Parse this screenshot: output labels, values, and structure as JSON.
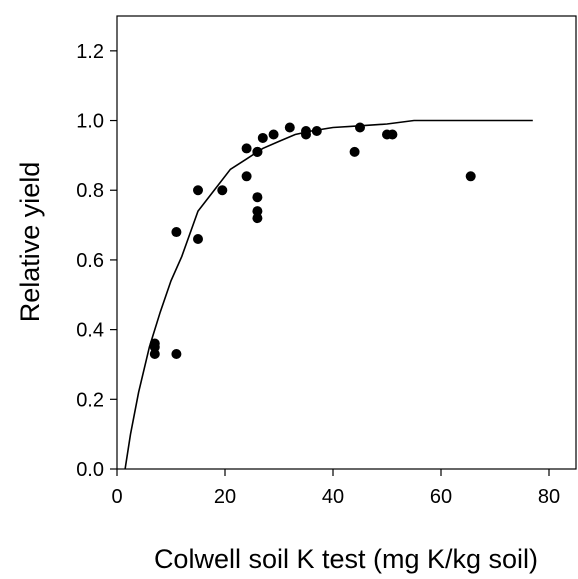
{
  "chart_data": {
    "type": "scatter",
    "title": "",
    "xlabel": "Colwell soil K test (mg K/kg soil)",
    "ylabel": "Relative yield",
    "xlim": [
      0,
      85
    ],
    "ylim": [
      0,
      1.3
    ],
    "x_ticks": [
      0,
      20,
      40,
      60,
      80
    ],
    "y_ticks": [
      0.0,
      0.2,
      0.4,
      0.6,
      0.8,
      1.0,
      1.2
    ],
    "x_tick_labels": [
      "0",
      "20",
      "40",
      "60",
      "80"
    ],
    "y_tick_labels": [
      "0.0",
      "0.2",
      "0.4",
      "0.6",
      "0.8",
      "1.0",
      "1.2"
    ],
    "grid": false,
    "series": [
      {
        "kind": "points",
        "x": [
          7,
          7,
          7,
          11,
          11,
          15,
          15,
          19.5,
          24,
          24,
          26,
          26,
          26,
          26,
          26,
          27,
          29,
          32,
          35,
          35,
          37,
          44,
          45,
          50,
          51,
          65.5
        ],
        "y": [
          0.36,
          0.35,
          0.33,
          0.68,
          0.33,
          0.8,
          0.66,
          0.8,
          0.92,
          0.84,
          0.91,
          0.78,
          0.74,
          0.72,
          0.91,
          0.95,
          0.96,
          0.98,
          0.97,
          0.96,
          0.97,
          0.91,
          0.98,
          0.96,
          0.96,
          0.84
        ]
      },
      {
        "kind": "fitted-curve",
        "x": [
          1.5,
          2.5,
          4,
          6,
          8,
          10,
          12,
          15,
          18,
          21,
          24,
          27,
          30,
          33,
          36,
          40,
          45,
          50,
          55,
          60,
          65,
          70,
          77
        ],
        "y": [
          0.0,
          0.1,
          0.22,
          0.35,
          0.45,
          0.54,
          0.61,
          0.74,
          0.8,
          0.86,
          0.89,
          0.92,
          0.94,
          0.96,
          0.97,
          0.98,
          0.985,
          0.99,
          1.0,
          1.0,
          1.0,
          1.0,
          1.0
        ]
      }
    ]
  }
}
